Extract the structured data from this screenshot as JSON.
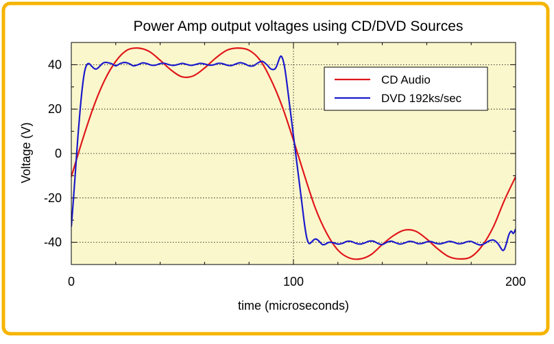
{
  "chart_data": {
    "type": "line",
    "title": "Power Amp output voltages using CD/DVD Sources",
    "xlabel": "time (microseconds)",
    "ylabel": "Voltage (V)",
    "xlim": [
      0,
      200
    ],
    "ylim": [
      -50,
      50
    ],
    "x_ticks": [
      0,
      100,
      200
    ],
    "y_ticks": [
      -40,
      -20,
      0,
      20,
      40
    ],
    "grid": true,
    "legend_position": "top-right",
    "colors": {
      "frame": "#f5b400",
      "plot_background": "#fbf7cc",
      "CD Audio": "#e0161a",
      "DVD 192ks/sec": "#1a1acc"
    },
    "series": [
      {
        "name": "CD Audio",
        "x": [
          0,
          5,
          10,
          15,
          20,
          25,
          30,
          35,
          40,
          45,
          50,
          55,
          60,
          65,
          70,
          75,
          80,
          85,
          90,
          95,
          100,
          105,
          110,
          115,
          120,
          125,
          130,
          135,
          140,
          145,
          150,
          155,
          160,
          165,
          170,
          175,
          180,
          185,
          190,
          195,
          200
        ],
        "values": [
          -10.5,
          6.0,
          21.0,
          33.0,
          41.5,
          46.5,
          47.5,
          46.0,
          42.0,
          37.5,
          34.5,
          35.0,
          38.5,
          43.0,
          46.5,
          47.5,
          46.5,
          42.0,
          33.0,
          21.0,
          6.0,
          -10.0,
          -25.0,
          -36.0,
          -43.5,
          -47.0,
          -47.5,
          -45.5,
          -41.0,
          -37.0,
          -34.5,
          -35.0,
          -38.5,
          -43.0,
          -46.5,
          -47.5,
          -46.5,
          -41.5,
          -33.0,
          -21.0,
          -10.5
        ]
      },
      {
        "name": "DVD 192ks/sec",
        "x": [
          0,
          1,
          2,
          3,
          4,
          5,
          6,
          7,
          8,
          9,
          10,
          11,
          12,
          13,
          14,
          15,
          16,
          18,
          20,
          22,
          24,
          26,
          28,
          30,
          32,
          34,
          36,
          38,
          40,
          42,
          44,
          46,
          48,
          50,
          52,
          54,
          56,
          58,
          60,
          62,
          64,
          66,
          68,
          70,
          72,
          74,
          76,
          78,
          80,
          82,
          84,
          86,
          88,
          90,
          92,
          94,
          95,
          96,
          97,
          98,
          99,
          100,
          101,
          102,
          103,
          104,
          105,
          106,
          107,
          108,
          109,
          110,
          111,
          112,
          113,
          114,
          115,
          116,
          118,
          120,
          122,
          124,
          126,
          128,
          130,
          132,
          134,
          136,
          138,
          140,
          142,
          144,
          146,
          148,
          150,
          152,
          154,
          156,
          158,
          160,
          162,
          164,
          166,
          168,
          170,
          172,
          174,
          176,
          178,
          180,
          182,
          184,
          186,
          188,
          190,
          192,
          194,
          195,
          196,
          197,
          198,
          199,
          200
        ],
        "values": [
          -33.0,
          -20.0,
          -6.0,
          8.0,
          20.0,
          30.0,
          37.0,
          40.0,
          40.5,
          39.5,
          38.5,
          38.0,
          38.5,
          39.5,
          40.5,
          41.0,
          41.0,
          40.5,
          39.5,
          40.5,
          41.0,
          40.5,
          39.5,
          40.0,
          40.8,
          40.5,
          39.8,
          39.8,
          40.5,
          40.6,
          40.0,
          39.7,
          40.1,
          40.6,
          40.1,
          39.7,
          40.1,
          40.6,
          40.3,
          39.8,
          39.9,
          40.6,
          40.5,
          39.8,
          39.6,
          40.3,
          40.9,
          40.4,
          39.5,
          39.5,
          40.8,
          41.5,
          40.0,
          38.0,
          38.5,
          43.5,
          43.0,
          39.0,
          32.0,
          24.0,
          16.0,
          8.0,
          0.0,
          -8.0,
          -16.0,
          -24.0,
          -32.0,
          -38.0,
          -40.5,
          -40.0,
          -39.0,
          -38.5,
          -39.0,
          -40.0,
          -41.0,
          -41.0,
          -40.5,
          -40.0,
          -40.2,
          -40.8,
          -40.5,
          -39.6,
          -39.6,
          -40.4,
          -40.8,
          -40.3,
          -39.5,
          -39.5,
          -40.5,
          -41.0,
          -40.0,
          -39.5,
          -40.2,
          -40.8,
          -40.3,
          -39.6,
          -39.8,
          -40.6,
          -40.5,
          -39.8,
          -39.7,
          -40.4,
          -40.7,
          -40.2,
          -39.6,
          -39.9,
          -40.6,
          -40.5,
          -39.8,
          -39.6,
          -40.5,
          -41.2,
          -40.6,
          -39.4,
          -39.0,
          -40.5,
          -43.5,
          -43.0,
          -40.0,
          -36.5,
          -35.0,
          -36.0,
          -34.0
        ]
      }
    ]
  }
}
